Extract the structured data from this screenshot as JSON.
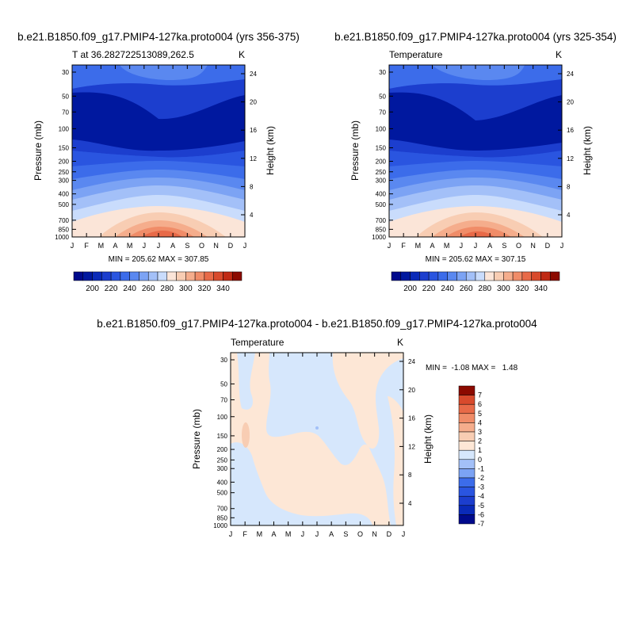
{
  "figure": {
    "title_left": "b.e21.B1850.f09_g17.PMIP4-127ka.proto004 (yrs 356-375)",
    "title_right": "b.e21.B1850.f09_g17.PMIP4-127ka.proto004 (yrs 325-354)",
    "title_diff": "b.e21.B1850.f09_g17.PMIP4-127ka.proto004 - b.e21.B1850.f09_g17.PMIP4-127ka.proto004"
  },
  "colors": {
    "abs_scale": [
      "#000a8c",
      "#00189f",
      "#0a2ab8",
      "#1c3ece",
      "#2a55e0",
      "#3c6cea",
      "#5a88f0",
      "#7ca3f4",
      "#a3c0f8",
      "#c9dcfc",
      "#fbe5d8",
      "#f8cdb3",
      "#f5ad8c",
      "#f08c68",
      "#e86a48",
      "#d84a2c",
      "#c02a14",
      "#8c0a00"
    ],
    "diff_scale": [
      "#000a8c",
      "#0a2ab8",
      "#1c3ece",
      "#2a55e0",
      "#3c6cea",
      "#7ca3f4",
      "#a3c0f8",
      "#d6e7fc",
      "#fde7d6",
      "#f8cdb3",
      "#f5ad8c",
      "#f08c68",
      "#e86a48",
      "#d84a2c",
      "#8c0a00"
    ]
  },
  "chart_data": [
    {
      "type": "heatmap",
      "panel": "left",
      "left_label": "T at 36.282722513089,262.5",
      "right_label": "K",
      "ylabel": "Pressure (mb)",
      "ylabel_right": "Height (km)",
      "x_ticks": [
        "J",
        "F",
        "M",
        "A",
        "M",
        "J",
        "J",
        "A",
        "S",
        "O",
        "N",
        "D",
        "J"
      ],
      "y_ticks": [
        "30",
        "50",
        "70",
        "100",
        "150",
        "200",
        "250",
        "300",
        "400",
        "500",
        "700",
        "850",
        "1000"
      ],
      "y_ticks_right": [
        "24",
        "20",
        "16",
        "12",
        "8",
        "4"
      ],
      "stats": "MIN = 205.62 MAX = 307.85",
      "min": 205.62,
      "max": 307.85,
      "colorbar_ticks": [
        "200",
        "220",
        "240",
        "260",
        "280",
        "300",
        "320",
        "340"
      ]
    },
    {
      "type": "heatmap",
      "panel": "right",
      "left_label": "Temperature",
      "right_label": "K",
      "ylabel": "Pressure (mb)",
      "ylabel_right": "Height (km)",
      "x_ticks": [
        "J",
        "F",
        "M",
        "A",
        "M",
        "J",
        "J",
        "A",
        "S",
        "O",
        "N",
        "D",
        "J"
      ],
      "y_ticks": [
        "30",
        "50",
        "70",
        "100",
        "150",
        "200",
        "250",
        "300",
        "400",
        "500",
        "700",
        "850",
        "1000"
      ],
      "y_ticks_right": [
        "24",
        "20",
        "16",
        "12",
        "8",
        "4"
      ],
      "stats": "MIN = 205.62 MAX = 307.15",
      "min": 205.62,
      "max": 307.15,
      "colorbar_ticks": [
        "200",
        "220",
        "240",
        "260",
        "280",
        "300",
        "320",
        "340"
      ]
    },
    {
      "type": "heatmap",
      "panel": "difference",
      "left_label": "Temperature",
      "right_label": "K",
      "ylabel": "Pressure (mb)",
      "ylabel_right": "Height (km)",
      "x_ticks": [
        "J",
        "F",
        "M",
        "A",
        "M",
        "J",
        "J",
        "A",
        "S",
        "O",
        "N",
        "D",
        "J"
      ],
      "y_ticks": [
        "30",
        "50",
        "70",
        "100",
        "150",
        "200",
        "250",
        "300",
        "400",
        "500",
        "700",
        "850",
        "1000"
      ],
      "y_ticks_right": [
        "24",
        "20",
        "16",
        "12",
        "8",
        "4"
      ],
      "stats": "MIN =  -1.08 MAX =   1.48",
      "min": -1.08,
      "max": 1.48,
      "colorbar_ticks": [
        "7",
        "6",
        "5",
        "4",
        "3",
        "2",
        "1",
        "0",
        "-1",
        "-2",
        "-3",
        "-4",
        "-5",
        "-6",
        "-7"
      ]
    }
  ]
}
